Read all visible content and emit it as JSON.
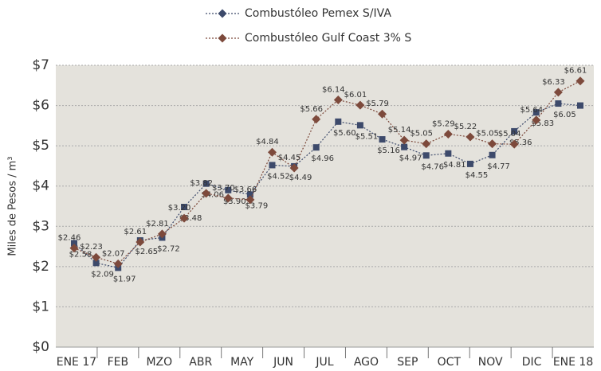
{
  "chart_data": {
    "type": "line",
    "y_label": "Miles de Pesos / m³",
    "categories": [
      "ENE 17",
      null,
      "FEB",
      null,
      "MZO",
      null,
      "ABR",
      null,
      "MAY",
      null,
      "JUN",
      null,
      "JUL",
      null,
      "AGO",
      null,
      "SEP",
      null,
      "OCT",
      null,
      "NOV",
      null,
      "DIC",
      "ENE 18"
    ],
    "series": [
      {
        "name": "Combustóleo Pemex S/IVA",
        "color": "#3d4a6b",
        "label_color": "#5a5f6a",
        "values": [
          2.58,
          2.09,
          1.97,
          2.65,
          2.72,
          3.48,
          4.06,
          3.9,
          3.79,
          4.52,
          4.49,
          4.96,
          5.6,
          5.51,
          5.16,
          4.97,
          4.76,
          4.81,
          4.55,
          4.77,
          5.36,
          5.83,
          6.05,
          6.0
        ],
        "value_labels": [
          "$2.58",
          "$2.09",
          "$1.97",
          "$2.65",
          "$2.72",
          "$3.48",
          "$4.06",
          "$3.90",
          "$3.79",
          "$4.52",
          "$4.49",
          "$4.96",
          "$5.60",
          "$5.51",
          "$5.16",
          "$4.97",
          "$4.76",
          "$4.81",
          "$4.55",
          "$4.77",
          "$5.36",
          "$5.83",
          "$6.05",
          null
        ]
      },
      {
        "name": "Combustóleo Gulf Coast 3% S",
        "color": "#7d4a3c",
        "label_color": "#a05a48",
        "values": [
          2.46,
          2.23,
          2.07,
          2.61,
          2.81,
          3.2,
          3.82,
          3.7,
          3.66,
          4.84,
          4.45,
          5.66,
          6.14,
          6.01,
          5.79,
          5.14,
          5.05,
          5.29,
          5.22,
          5.05,
          5.04,
          5.64,
          6.33,
          6.61
        ],
        "value_labels": [
          "$2.46",
          "$2.23",
          "$2.07",
          "$2.61",
          "$2.81",
          "$3.20",
          "$3.82",
          "$3.70",
          "$3.66",
          "$4.84",
          "$4.45",
          "$5.66",
          "$6.14",
          "$6.01",
          "$5.79",
          "$5.14",
          "$5.05",
          "$5.29",
          "$5.22",
          "$5.05",
          "$5.04",
          "$5.64",
          "$6.33",
          "$6.61"
        ]
      }
    ],
    "ylim": [
      0,
      7
    ],
    "yticks": [
      {
        "value": 0,
        "label": "$0"
      },
      {
        "value": 1,
        "label": "$1"
      },
      {
        "value": 2,
        "label": "$2"
      },
      {
        "value": 3,
        "label": "$3"
      },
      {
        "value": 4,
        "label": "$4"
      },
      {
        "value": 5,
        "label": "$5"
      },
      {
        "value": 6,
        "label": "$6"
      },
      {
        "value": 7,
        "label": "$7"
      }
    ],
    "grid": true,
    "legend": "top"
  }
}
